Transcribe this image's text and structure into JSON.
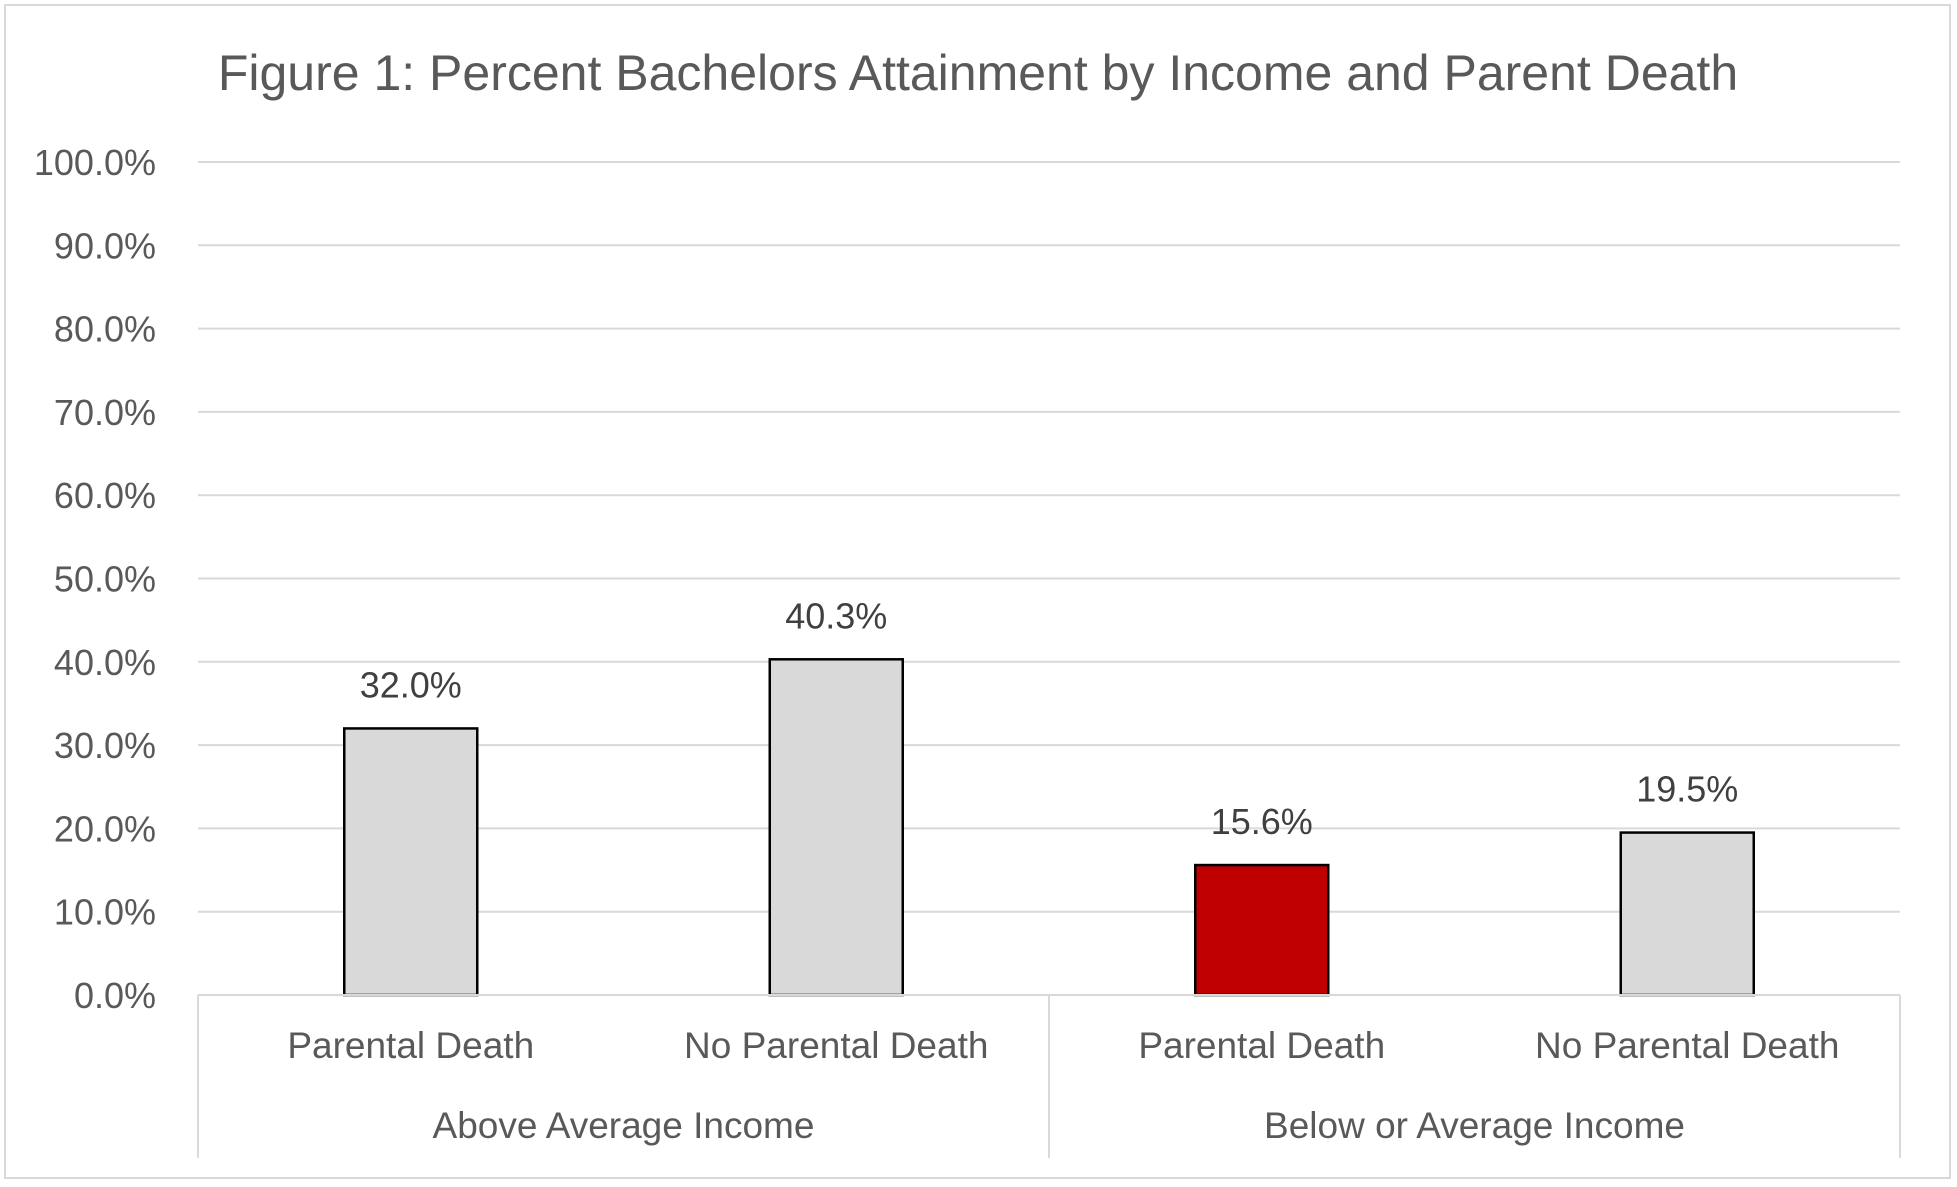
{
  "chart_data": {
    "type": "bar",
    "title": "Figure 1: Percent Bachelors Attainment by Income and Parent Death",
    "xlabel": "",
    "ylabel": "",
    "ylim": [
      0,
      100
    ],
    "yticks": [
      "0.0%",
      "10.0%",
      "20.0%",
      "30.0%",
      "40.0%",
      "50.0%",
      "60.0%",
      "70.0%",
      "80.0%",
      "90.0%",
      "100.0%"
    ],
    "grid": true,
    "legend": "none",
    "groups": [
      {
        "label": "Above Average Income",
        "categories": [
          "Parental Death",
          "No Parental Death"
        ],
        "values": [
          32.0,
          40.3
        ],
        "data_labels": [
          "32.0%",
          "40.3%"
        ],
        "colors": [
          "#d9d9d9",
          "#d9d9d9"
        ]
      },
      {
        "label": "Below or Average Income",
        "categories": [
          "Parental Death",
          "No Parental Death"
        ],
        "values": [
          15.6,
          19.5
        ],
        "data_labels": [
          "15.6%",
          "19.5%"
        ],
        "colors": [
          "#c00000",
          "#d9d9d9"
        ]
      }
    ]
  }
}
